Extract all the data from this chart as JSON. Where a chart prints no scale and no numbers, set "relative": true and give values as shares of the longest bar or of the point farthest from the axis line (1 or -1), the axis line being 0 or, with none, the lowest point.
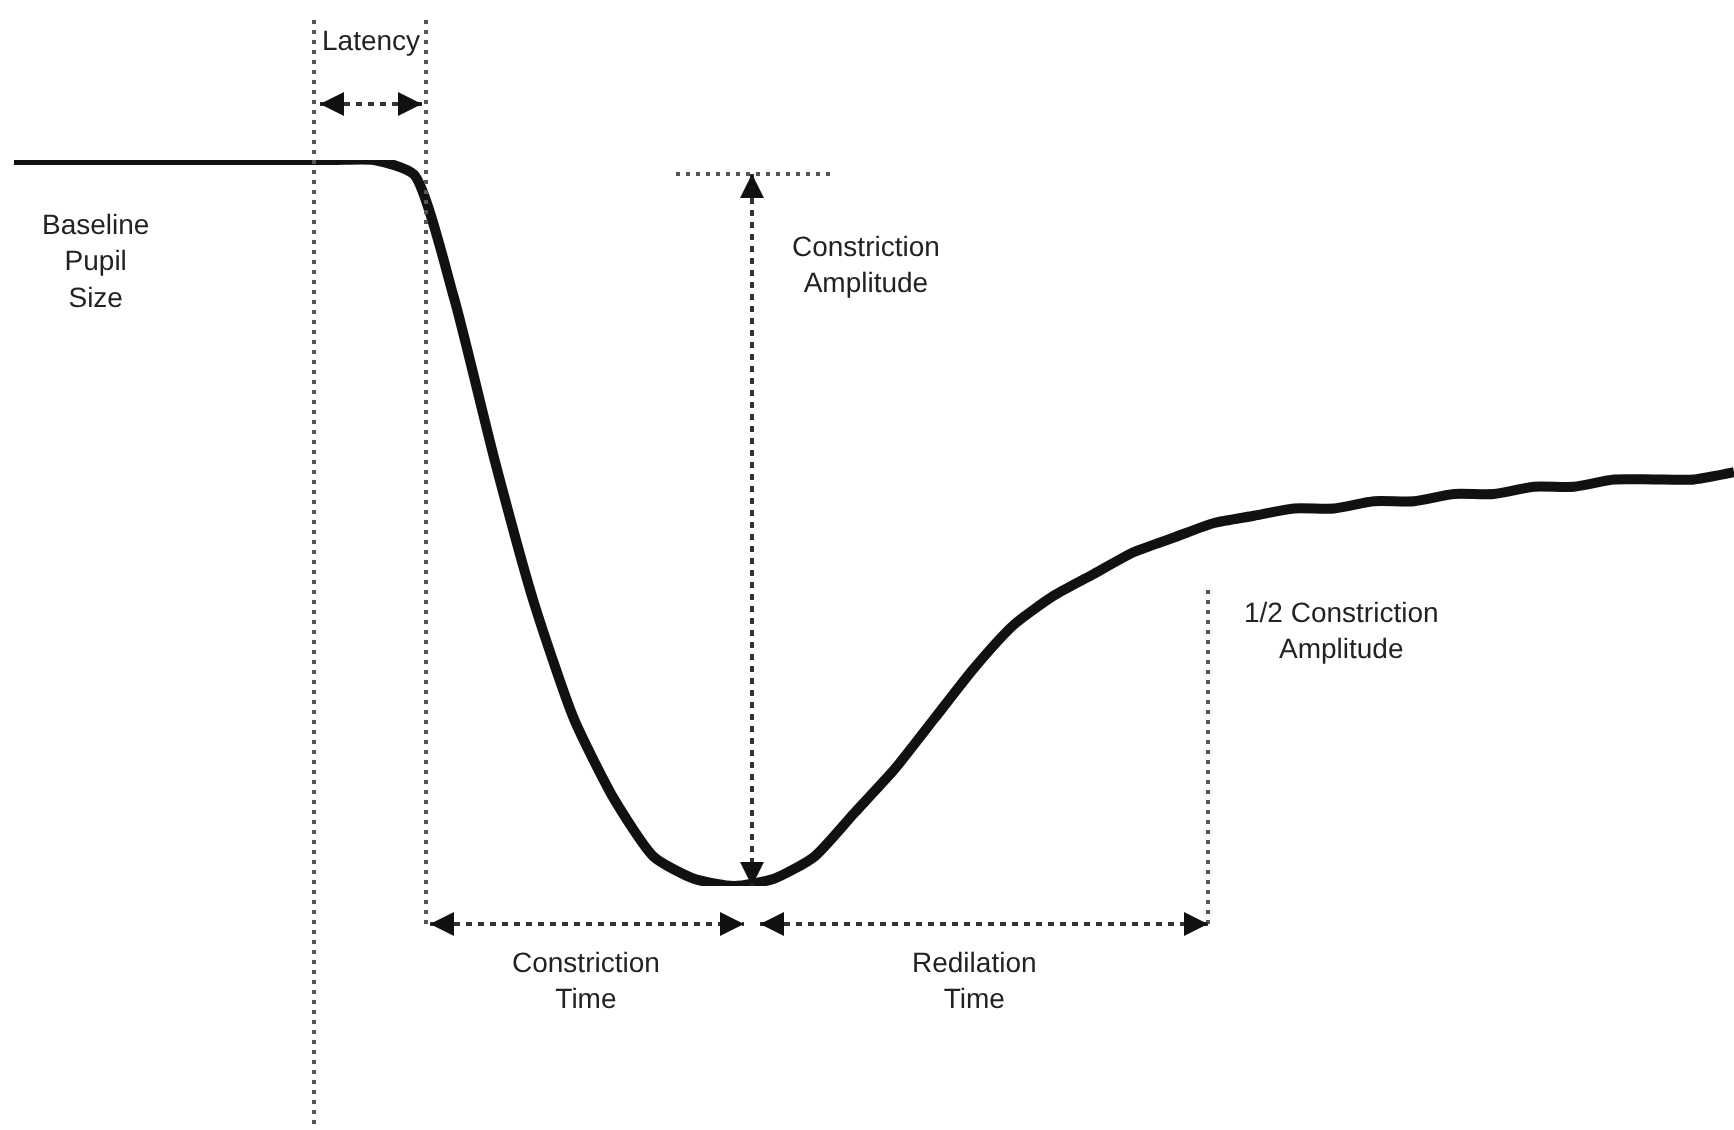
{
  "chart_data": {
    "type": "line",
    "relative": true,
    "categories": [
      null,
      null,
      null,
      null,
      null,
      null,
      null,
      null,
      null,
      null,
      null,
      null,
      null,
      null,
      null,
      null,
      null,
      null,
      null,
      null,
      null,
      null,
      null,
      null,
      null,
      null,
      null,
      null,
      null,
      null,
      null,
      null,
      null,
      null,
      null,
      null,
      null,
      null,
      null,
      null,
      null,
      null,
      null,
      null
    ],
    "series": [
      {
        "color": "#111111",
        "values": [
          1,
          1,
          1,
          1,
          1,
          1,
          1,
          1,
          1,
          1,
          0.98,
          0.81,
          0.59,
          0.39,
          0.23,
          0.12,
          0.04,
          0.01,
          0,
          0.01,
          0.04,
          0.1,
          0.16,
          0.23,
          0.3,
          0.36,
          0.4,
          0.43,
          0.46,
          0.48,
          0.5,
          0.51,
          0.52,
          0.52,
          0.53,
          0.53,
          0.54,
          0.54,
          0.55,
          0.55,
          0.56,
          0.56,
          0.56,
          0.57
        ]
      }
    ],
    "annotations": [
      "Latency",
      "Baseline\nPupil\nSize",
      "Constriction\nAmplitude",
      "1/2 Constriction\nAmplitude",
      "Constriction\nTime",
      "Redilation\nTime"
    ]
  }
}
